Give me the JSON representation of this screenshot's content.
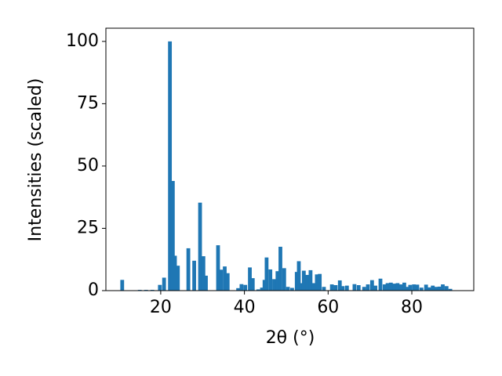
{
  "chart_data": {
    "type": "bar",
    "x_label": "2θ (°)",
    "y_label": "Intensities (scaled)",
    "x": [
      10.8,
      15,
      16.5,
      18,
      19.8,
      20.8,
      22.2,
      22.9,
      23.4,
      24.1,
      26.6,
      28,
      29.4,
      30.2,
      30.8,
      33.7,
      34.4,
      35.3,
      36,
      38.5,
      39.3,
      40.2,
      41.3,
      42,
      43.3,
      44.2,
      44.8,
      45.3,
      46.2,
      47.1,
      47.9,
      48.6,
      49.5,
      50.4,
      51.4,
      52.5,
      53,
      53.6,
      54.2,
      55,
      55.8,
      56.5,
      57.3,
      58,
      59,
      60.9,
      61.8,
      62.8,
      63.5,
      64.5,
      66.3,
      67.3,
      68.6,
      69.5,
      70.5,
      71.3,
      72.5,
      73.5,
      74.2,
      75,
      75.8,
      76.6,
      77.4,
      78.2,
      79,
      79.6,
      80.5,
      81.3,
      82.3,
      83.4,
      84.2,
      85,
      85.8,
      86.6,
      87.4,
      88.3,
      89.2
    ],
    "values": [
      4.3,
      0.3,
      0.3,
      0.3,
      2.3,
      5.2,
      100,
      44,
      14,
      10,
      17,
      12,
      35.3,
      13.8,
      6,
      18.2,
      8.4,
      9.7,
      7,
      1,
      2.6,
      2.3,
      9.3,
      5,
      0.5,
      1.2,
      4.3,
      13.3,
      8.5,
      4.6,
      7.8,
      17.6,
      9,
      1.5,
      1.1,
      7.5,
      11.8,
      3,
      8,
      6.3,
      8.2,
      3,
      6.5,
      6.7,
      1.5,
      2.5,
      2.2,
      4.1,
      1.8,
      2,
      2.6,
      2.2,
      1.5,
      2.5,
      4.2,
      2,
      4.8,
      2.5,
      3,
      3.2,
      2.8,
      3,
      2.5,
      3.2,
      1.5,
      2.3,
      2.5,
      2.4,
      1.2,
      2.4,
      1.3,
      2,
      1.5,
      1.6,
      2.5,
      1.8,
      0.7
    ],
    "color": "#1f77b4",
    "xlim": [
      6.9,
      94.8
    ],
    "xticks": [
      20,
      40,
      60,
      80
    ],
    "ylim": [
      0,
      105.3
    ],
    "yticks": [
      0,
      25,
      50,
      75,
      100
    ]
  }
}
